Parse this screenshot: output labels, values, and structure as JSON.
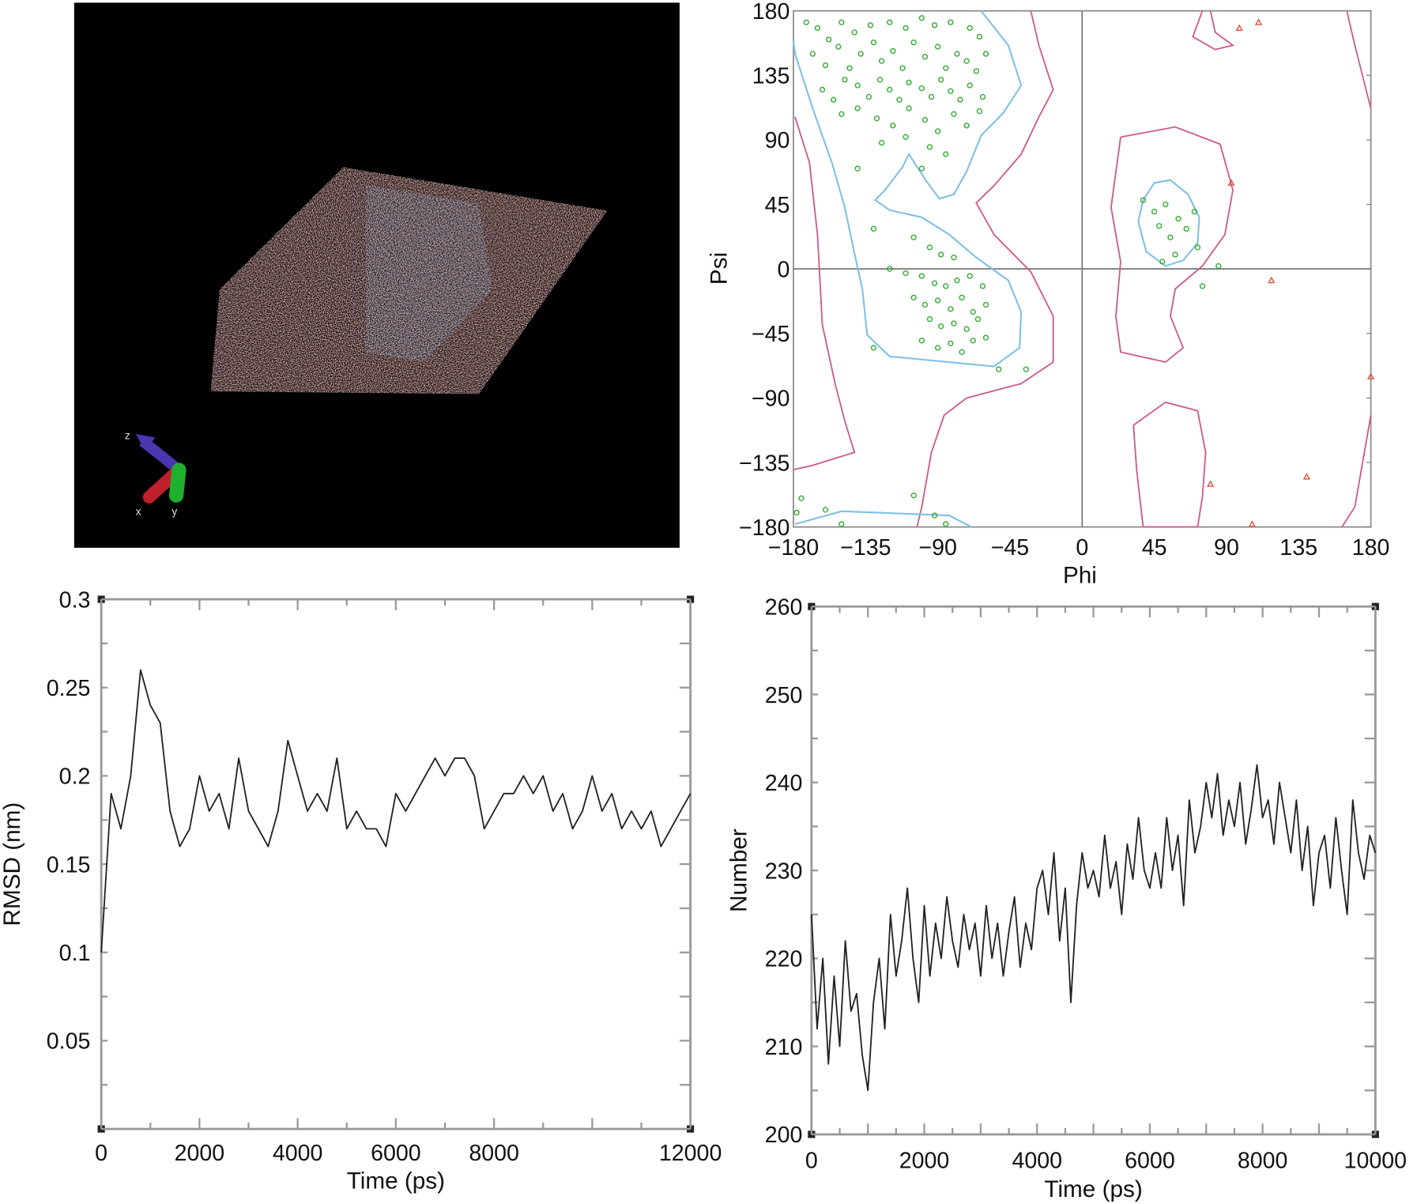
{
  "colors": {
    "favored_contour": "#7fbfe6",
    "allowed_contour": "#cc5b8e",
    "residue_point": "#2faa2f",
    "outlier_point": "#e0503a",
    "trace": "#222222",
    "frame": "#888888"
  },
  "structure_panel": {
    "axis_labels": {
      "x": "x",
      "y": "y",
      "z": "z"
    },
    "axis_colors": {
      "x": "#c0202a",
      "y": "#20b030",
      "z": "#4a36b0"
    }
  },
  "chart_data": [
    {
      "type": "scatter",
      "xlabel": "Phi",
      "ylabel": "Psi",
      "xlim": [
        -180,
        180
      ],
      "ylim": [
        -180,
        180
      ],
      "xticks": [
        "−180",
        "−135",
        "−90",
        "−45",
        "0",
        "45",
        "90",
        "135",
        "180"
      ],
      "yticks": [
        "180",
        "135",
        "90",
        "45",
        "0",
        "−45",
        "−90",
        "−135",
        "−180"
      ],
      "tick_values": [
        -180,
        -135,
        -90,
        -45,
        0,
        45,
        90,
        135,
        180
      ],
      "contours": {
        "favored": [
          [
            [
              -63,
              180
            ],
            [
              -46,
              156
            ],
            [
              -38,
              128
            ],
            [
              -49,
              109
            ],
            [
              -63,
              93
            ],
            [
              -72,
              68
            ],
            [
              -80,
              52
            ],
            [
              -89,
              49
            ],
            [
              -97,
              61
            ],
            [
              -108,
              80
            ],
            [
              -112,
              71
            ],
            [
              -123,
              55
            ],
            [
              -129,
              48
            ],
            [
              -120,
              41
            ],
            [
              -100,
              36
            ],
            [
              -83,
              24
            ],
            [
              -66,
              8
            ],
            [
              -46,
              -8
            ],
            [
              -38,
              -30
            ],
            [
              -39,
              -55
            ],
            [
              -55,
              -68
            ],
            [
              -83,
              -65
            ],
            [
              -120,
              -61
            ],
            [
              -134,
              -46
            ],
            [
              -137,
              -14
            ],
            [
              -142,
              11
            ],
            [
              -148,
              43
            ],
            [
              -156,
              74
            ],
            [
              -168,
              112
            ],
            [
              -179,
              150
            ],
            [
              -180,
              159
            ]
          ],
          [
            [
              35,
              33
            ],
            [
              38,
              48
            ],
            [
              45,
              60
            ],
            [
              55,
              62
            ],
            [
              66,
              52
            ],
            [
              73,
              36
            ],
            [
              72,
              18
            ],
            [
              63,
              6
            ],
            [
              52,
              2
            ],
            [
              40,
              12
            ],
            [
              35,
              33
            ]
          ],
          [
            [
              -179,
              -178
            ],
            [
              -150,
              -169
            ],
            [
              -83,
              -172
            ],
            [
              -69,
              -180
            ]
          ]
        ],
        "allowed": [
          [
            [
              -32,
              180
            ],
            [
              -27,
              156
            ],
            [
              -18,
              125
            ],
            [
              -27,
              106
            ],
            [
              -38,
              80
            ],
            [
              -55,
              58
            ],
            [
              -66,
              46
            ],
            [
              -55,
              24
            ],
            [
              -32,
              -2
            ],
            [
              -18,
              -33
            ],
            [
              -18,
              -65
            ],
            [
              -38,
              -80
            ],
            [
              -72,
              -90
            ],
            [
              -86,
              -102
            ],
            [
              -94,
              -128
            ],
            [
              -100,
              -166
            ],
            [
              -103,
              -180
            ]
          ],
          [
            [
              -179,
              106
            ],
            [
              -170,
              74
            ],
            [
              -165,
              24
            ],
            [
              -162,
              -39
            ],
            [
              -154,
              -80
            ],
            [
              -148,
              -106
            ],
            [
              -142,
              -128
            ],
            [
              -168,
              -137
            ],
            [
              -180,
              -140
            ]
          ],
          [
            [
              24,
              92
            ],
            [
              58,
              99
            ],
            [
              86,
              87
            ],
            [
              94,
              55
            ],
            [
              89,
              24
            ],
            [
              75,
              2
            ],
            [
              58,
              -14
            ],
            [
              55,
              -33
            ],
            [
              63,
              -55
            ],
            [
              52,
              -65
            ],
            [
              24,
              -58
            ],
            [
              21,
              -33
            ],
            [
              24,
              5
            ],
            [
              18,
              43
            ],
            [
              24,
              92
            ]
          ],
          [
            [
              32,
              -109
            ],
            [
              52,
              -93
            ],
            [
              72,
              -99
            ],
            [
              77,
              -128
            ],
            [
              75,
              -159
            ],
            [
              72,
              -180
            ],
            [
              38,
              -180
            ],
            [
              34,
              -140
            ],
            [
              32,
              -109
            ]
          ],
          [
            [
              75,
              180
            ],
            [
              69,
              162
            ],
            [
              83,
              153
            ],
            [
              94,
              156
            ],
            [
              83,
              165
            ],
            [
              80,
              180
            ]
          ],
          [
            [
              165,
              180
            ],
            [
              170,
              156
            ],
            [
              177,
              125
            ],
            [
              180,
              112
            ]
          ],
          [
            [
              180,
              -102
            ],
            [
              170,
              -166
            ],
            [
              162,
              -180
            ]
          ]
        ]
      },
      "points": [
        [
          -172,
          172
        ],
        [
          -165,
          168
        ],
        [
          -158,
          160
        ],
        [
          -150,
          172
        ],
        [
          -142,
          165
        ],
        [
          -132,
          170
        ],
        [
          -120,
          172
        ],
        [
          -110,
          168
        ],
        [
          -100,
          175
        ],
        [
          -92,
          170
        ],
        [
          -82,
          172
        ],
        [
          -70,
          168
        ],
        [
          -64,
          162
        ],
        [
          -168,
          150
        ],
        [
          -160,
          142
        ],
        [
          -152,
          155
        ],
        [
          -145,
          140
        ],
        [
          -138,
          150
        ],
        [
          -130,
          158
        ],
        [
          -125,
          145
        ],
        [
          -118,
          152
        ],
        [
          -112,
          140
        ],
        [
          -105,
          158
        ],
        [
          -98,
          148
        ],
        [
          -90,
          155
        ],
        [
          -85,
          140
        ],
        [
          -78,
          150
        ],
        [
          -72,
          145
        ],
        [
          -66,
          138
        ],
        [
          -60,
          150
        ],
        [
          -162,
          125
        ],
        [
          -155,
          118
        ],
        [
          -148,
          132
        ],
        [
          -140,
          128
        ],
        [
          -133,
          120
        ],
        [
          -126,
          132
        ],
        [
          -120,
          125
        ],
        [
          -114,
          118
        ],
        [
          -108,
          130
        ],
        [
          -100,
          126
        ],
        [
          -94,
          120
        ],
        [
          -88,
          132
        ],
        [
          -82,
          124
        ],
        [
          -76,
          118
        ],
        [
          -70,
          128
        ],
        [
          -62,
          120
        ],
        [
          -150,
          108
        ],
        [
          -140,
          112
        ],
        [
          -128,
          105
        ],
        [
          -118,
          100
        ],
        [
          -108,
          112
        ],
        [
          -98,
          104
        ],
        [
          -90,
          96
        ],
        [
          -80,
          108
        ],
        [
          -72,
          100
        ],
        [
          -64,
          110
        ],
        [
          -125,
          88
        ],
        [
          -110,
          92
        ],
        [
          -95,
          85
        ],
        [
          -85,
          80
        ],
        [
          -140,
          70
        ],
        [
          -100,
          70
        ],
        [
          -130,
          28
        ],
        [
          -105,
          22
        ],
        [
          -95,
          15
        ],
        [
          -88,
          10
        ],
        [
          -80,
          8
        ],
        [
          -120,
          0
        ],
        [
          -110,
          -3
        ],
        [
          -100,
          -5
        ],
        [
          -92,
          -10
        ],
        [
          -85,
          -12
        ],
        [
          -78,
          -8
        ],
        [
          -70,
          -5
        ],
        [
          -62,
          -12
        ],
        [
          -105,
          -20
        ],
        [
          -98,
          -25
        ],
        [
          -90,
          -22
        ],
        [
          -82,
          -28
        ],
        [
          -75,
          -20
        ],
        [
          -68,
          -30
        ],
        [
          -60,
          -25
        ],
        [
          -95,
          -35
        ],
        [
          -88,
          -40
        ],
        [
          -80,
          -38
        ],
        [
          -72,
          -42
        ],
        [
          -65,
          -35
        ],
        [
          -100,
          -50
        ],
        [
          -90,
          -55
        ],
        [
          -82,
          -52
        ],
        [
          -75,
          -58
        ],
        [
          -68,
          -50
        ],
        [
          -60,
          -48
        ],
        [
          -130,
          -55
        ],
        [
          -52,
          -70
        ],
        [
          -35,
          -70
        ],
        [
          38,
          48
        ],
        [
          45,
          40
        ],
        [
          52,
          45
        ],
        [
          48,
          30
        ],
        [
          55,
          22
        ],
        [
          60,
          35
        ],
        [
          65,
          28
        ],
        [
          70,
          40
        ],
        [
          72,
          15
        ],
        [
          58,
          10
        ],
        [
          50,
          5
        ],
        [
          85,
          2
        ],
        [
          75,
          -12
        ],
        [
          -175,
          -160
        ],
        [
          -160,
          -168
        ],
        [
          -105,
          -158
        ],
        [
          -92,
          -172
        ],
        [
          -85,
          -178
        ],
        [
          -178,
          -170
        ],
        [
          -150,
          -178
        ]
      ],
      "outliers": [
        [
          98,
          168
        ],
        [
          110,
          172
        ],
        [
          93,
          60
        ],
        [
          118,
          -8
        ],
        [
          180,
          -75
        ],
        [
          80,
          -150
        ],
        [
          106,
          -178
        ],
        [
          140,
          -145
        ]
      ]
    },
    {
      "type": "line",
      "xlabel": "Time (ps)",
      "ylabel": "RMSD (nm)",
      "xlim": [
        0,
        12000
      ],
      "ylim": [
        0,
        0.3
      ],
      "xticks": [
        "0",
        "2000",
        "4000",
        "6000",
        "8000",
        "12000"
      ],
      "xtick_values": [
        0,
        2000,
        4000,
        6000,
        8000,
        12000
      ],
      "yticks": [
        "0.3",
        "0.25",
        "0.2",
        "0.15",
        "0.1",
        "0.05"
      ],
      "ytick_values": [
        0.3,
        0.25,
        0.2,
        0.15,
        0.1,
        0.05
      ],
      "x_step": 200,
      "values": [
        0.1,
        0.19,
        0.17,
        0.2,
        0.26,
        0.24,
        0.23,
        0.18,
        0.16,
        0.17,
        0.2,
        0.18,
        0.19,
        0.17,
        0.21,
        0.18,
        0.17,
        0.16,
        0.18,
        0.22,
        0.2,
        0.18,
        0.19,
        0.18,
        0.21,
        0.17,
        0.18,
        0.17,
        0.17,
        0.16,
        0.19,
        0.18,
        0.19,
        0.2,
        0.21,
        0.2,
        0.21,
        0.21,
        0.2,
        0.17,
        0.18,
        0.19,
        0.19,
        0.2,
        0.19,
        0.2,
        0.18,
        0.19,
        0.17,
        0.18,
        0.2,
        0.18,
        0.19,
        0.17,
        0.18,
        0.17,
        0.18,
        0.16,
        0.17,
        0.18,
        0.19
      ]
    },
    {
      "type": "line",
      "xlabel": "Time (ps)",
      "ylabel": "Number",
      "xlim": [
        0,
        10000
      ],
      "ylim": [
        200,
        260
      ],
      "xticks": [
        "0",
        "2000",
        "4000",
        "6000",
        "8000",
        "10000"
      ],
      "xtick_values": [
        0,
        2000,
        4000,
        6000,
        8000,
        10000
      ],
      "yticks": [
        "260",
        "250",
        "240",
        "230",
        "220",
        "210",
        "200"
      ],
      "ytick_values": [
        260,
        250,
        240,
        230,
        220,
        210,
        200
      ],
      "x_step": 100,
      "values": [
        225,
        212,
        220,
        208,
        218,
        210,
        222,
        214,
        216,
        209,
        205,
        215,
        220,
        212,
        225,
        218,
        222,
        228,
        220,
        215,
        226,
        218,
        224,
        220,
        227,
        222,
        219,
        225,
        221,
        224,
        218,
        226,
        220,
        224,
        218,
        223,
        227,
        219,
        224,
        221,
        228,
        230,
        225,
        232,
        222,
        228,
        215,
        226,
        232,
        228,
        230,
        227,
        234,
        228,
        231,
        225,
        233,
        229,
        236,
        230,
        228,
        232,
        228,
        236,
        230,
        234,
        226,
        238,
        232,
        235,
        240,
        236,
        241,
        234,
        238,
        235,
        240,
        233,
        237,
        242,
        236,
        238,
        233,
        240,
        236,
        232,
        238,
        230,
        235,
        226,
        232,
        234,
        228,
        236,
        230,
        225,
        238,
        232,
        229,
        234,
        232
      ]
    }
  ]
}
